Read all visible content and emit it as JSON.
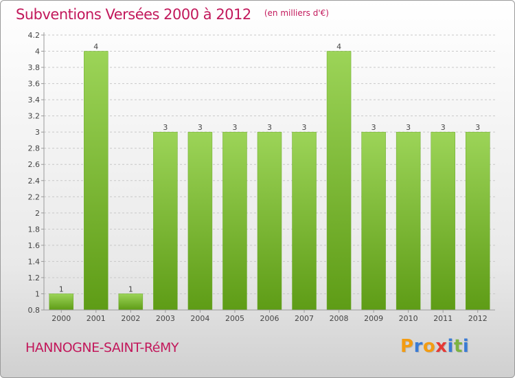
{
  "title": "Subventions Versées 2000 à 2012",
  "unit": "(en milliers d'€)",
  "commune": "HANNOGNE-SAINT-RéMY",
  "logo": {
    "text": "Proxiti",
    "letters": [
      "P",
      "r",
      "o",
      "x",
      "i",
      "t",
      "i"
    ],
    "colors": [
      "#f39c12",
      "#3a7bd5",
      "#f39c12",
      "#e53935",
      "#3a7bd5",
      "#7cb342",
      "#3a7bd5"
    ]
  },
  "colors": {
    "title": "#c2185b",
    "bar_top": "#9cd458",
    "bar_bottom": "#5e9c16",
    "grid": "#c8c8c8",
    "axis": "#999999"
  },
  "chart_data": {
    "type": "bar",
    "categories": [
      "2000",
      "2001",
      "2002",
      "2003",
      "2004",
      "2005",
      "2006",
      "2007",
      "2008",
      "2009",
      "2010",
      "2011",
      "2012"
    ],
    "values": [
      1,
      4,
      1,
      3,
      3,
      3,
      3,
      3,
      4,
      3,
      3,
      3,
      3
    ],
    "data_labels": [
      "1",
      "4",
      "1",
      "3",
      "3",
      "3",
      "3",
      "3",
      "4",
      "3",
      "3",
      "3",
      "3"
    ],
    "yticks": [
      0.8,
      1,
      1.2,
      1.4,
      1.6,
      1.8,
      2,
      2.2,
      2.4,
      2.6,
      2.8,
      3,
      3.2,
      3.4,
      3.6,
      3.8,
      4,
      4.2
    ],
    "ytick_labels": [
      "0.8",
      "1",
      "1.2",
      "1.4",
      "1.6",
      "1.8",
      "2",
      "2.2",
      "2.4",
      "2.6",
      "2.8",
      "3",
      "3.2",
      "3.4",
      "3.6",
      "3.8",
      "4",
      "4.2"
    ],
    "ylim": [
      0.8,
      4.2
    ],
    "grid": true,
    "legend": false
  }
}
